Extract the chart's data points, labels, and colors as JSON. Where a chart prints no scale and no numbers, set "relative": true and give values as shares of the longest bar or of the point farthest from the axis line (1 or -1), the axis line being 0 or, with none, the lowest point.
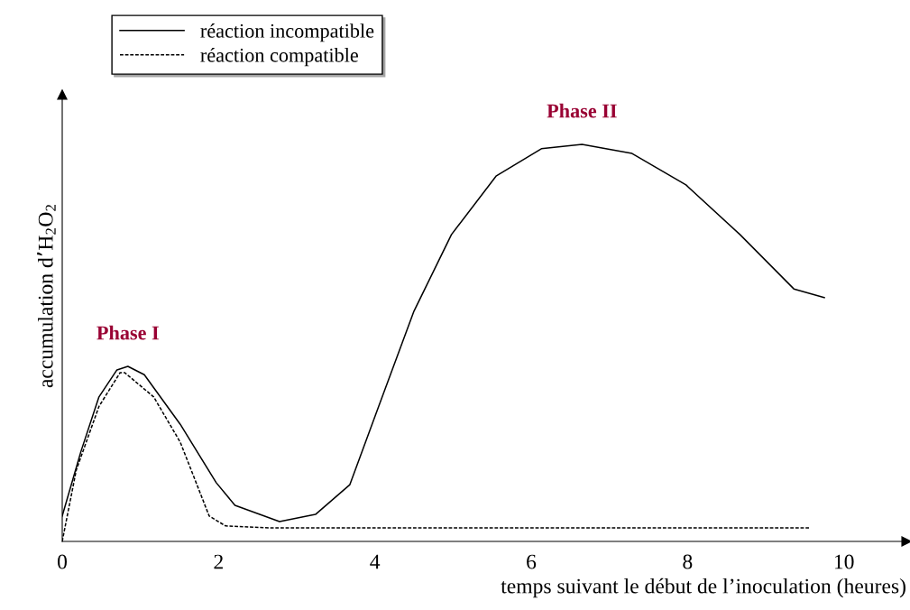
{
  "chart_data": {
    "type": "line",
    "relative": true,
    "xlabel": "temps suivant le début de l’inoculation (heures)",
    "ylabel": "accumulation d’H$_{2}$O$_{2}$",
    "xlim": [
      0,
      10.8
    ],
    "xticks": [
      0,
      2,
      4,
      6,
      8,
      10
    ],
    "legend": "top left",
    "marker": "none",
    "grid": false,
    "series": [
      {
        "name": "réaction incompatible",
        "color": "#000000",
        "line_style": "solid",
        "x": [
          0,
          0.24,
          0.47,
          0.7,
          0.84,
          1.05,
          1.51,
          1.97,
          2.21,
          2.78,
          3.24,
          3.68,
          4.05,
          4.5,
          4.98,
          5.55,
          6.13,
          6.65,
          7.29,
          7.98,
          8.67,
          9.36,
          9.75
        ],
        "values": [
          0.064,
          0.227,
          0.364,
          0.432,
          0.441,
          0.42,
          0.295,
          0.148,
          0.091,
          0.05,
          0.068,
          0.143,
          0.341,
          0.58,
          0.773,
          0.92,
          0.989,
          1.0,
          0.977,
          0.898,
          0.773,
          0.636,
          0.614
        ]
      },
      {
        "name": "réaction compatible",
        "color": "#000000",
        "line_style": "dashed",
        "x": [
          0,
          0.18,
          0.47,
          0.74,
          0.8,
          1.17,
          1.51,
          1.88,
          2.09,
          2.67,
          9.57
        ],
        "values": [
          0,
          0.18,
          0.34,
          0.425,
          0.425,
          0.364,
          0.25,
          0.064,
          0.039,
          0.034,
          0.034
        ]
      }
    ],
    "annotations": [
      {
        "text": "Phase I",
        "x": 0.84,
        "y": 0.441
      },
      {
        "text": "Phase II",
        "x": 6.65,
        "y": 1.0
      }
    ]
  }
}
